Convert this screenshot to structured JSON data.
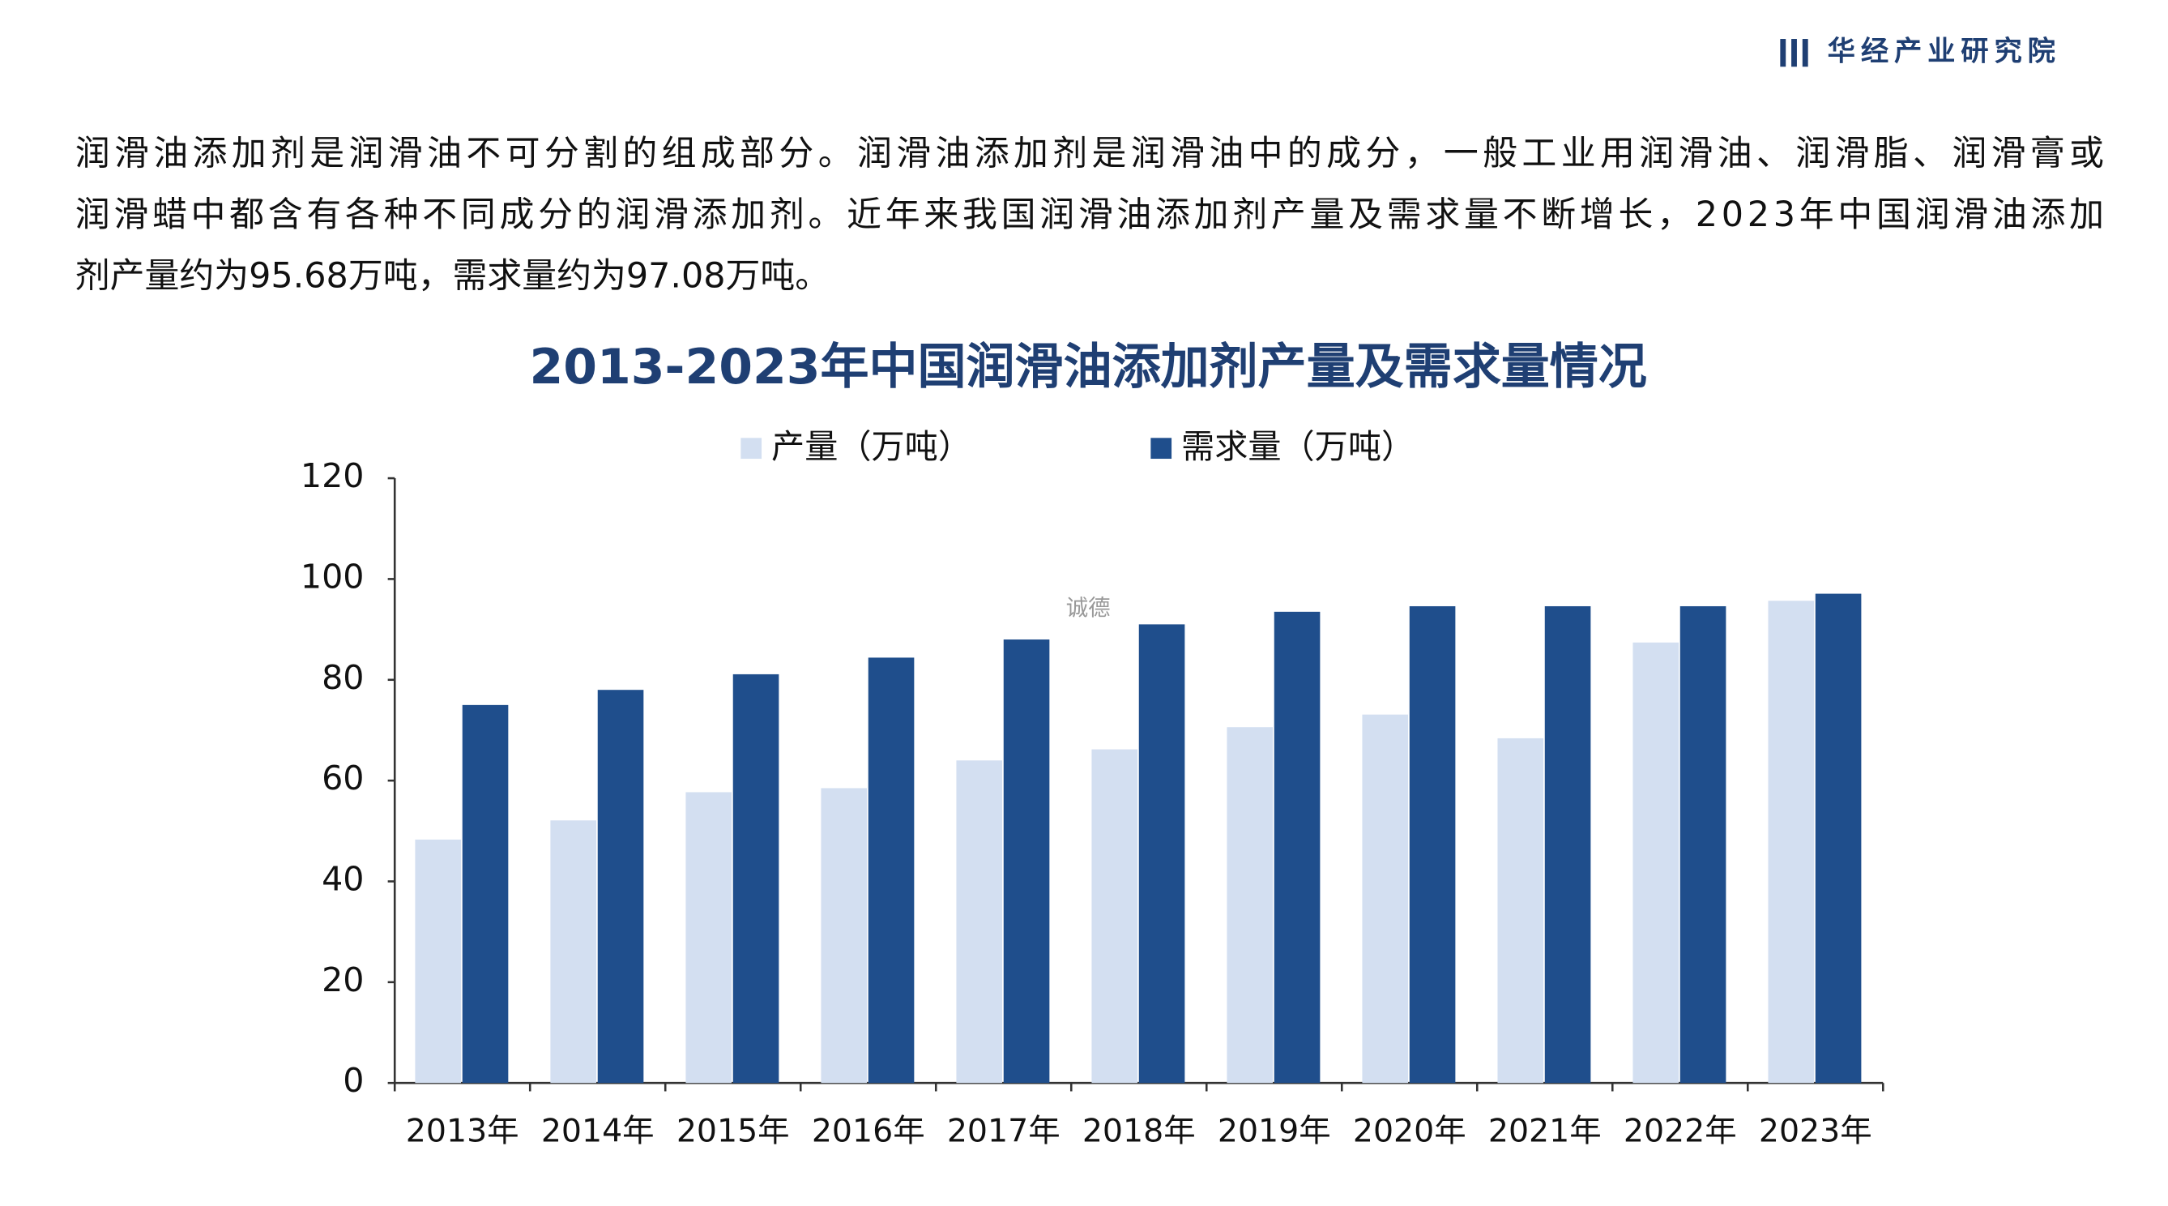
{
  "header": {
    "brand": "华经产业研究院"
  },
  "paragraph_lines": [
    "润滑油添加剂是润滑油不可分割的组成部分。润滑油添加剂是润滑油中的成分，一般工业用润滑油、润滑脂、润滑膏或",
    "润滑蜡中都含有各种不同成分的润滑添加剂。近年来我国润滑油添加剂产量及需求量不断增长，2023年中国润滑油添加",
    "剂产量约为95.68万吨，需求量约为97.08万吨。"
  ],
  "watermark": "诚德",
  "chart_data": {
    "type": "bar",
    "title": "2013-2023年中国润滑油添加剂产量及需求量情况",
    "categories": [
      "2013年",
      "2014年",
      "2015年",
      "2016年",
      "2017年",
      "2018年",
      "2019年",
      "2020年",
      "2021年",
      "2022年",
      "2023年"
    ],
    "series": [
      {
        "name": "产量（万吨）",
        "color": "#d3dff1",
        "values": [
          48.3,
          52.1,
          57.7,
          58.5,
          64,
          66.2,
          70.6,
          73.1,
          68.4,
          87.4,
          95.68
        ]
      },
      {
        "name": "需求量（万吨）",
        "color": "#1f4e8c",
        "values": [
          75,
          78,
          81.1,
          84.4,
          88,
          91,
          93.5,
          94.6,
          94.6,
          94.6,
          97.08
        ]
      }
    ],
    "ylim": [
      0,
      120
    ],
    "yticks": [
      0,
      20,
      40,
      60,
      80,
      100,
      120
    ],
    "grid": false,
    "legend": "top"
  }
}
